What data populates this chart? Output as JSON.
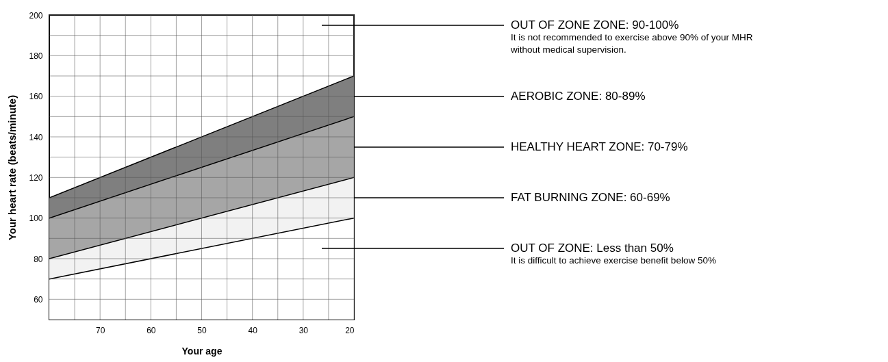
{
  "chart_data": {
    "type": "area",
    "xlabel": "Your age",
    "ylabel": "Your heart rate (beats/minute)",
    "x": [
      80,
      20
    ],
    "series": [
      {
        "color": "#7f7f7f",
        "values": [
          110,
          170
        ]
      },
      {
        "color": "#a6a6a6",
        "values": [
          100,
          150
        ]
      },
      {
        "color": "#f2f2f2",
        "values": [
          80,
          120
        ]
      },
      {
        "color": "#ffffff",
        "values": [
          70,
          100
        ]
      }
    ],
    "xlim": [
      80,
      20
    ],
    "xticks": [
      {
        "value": 75,
        "label": null
      },
      70,
      {
        "value": 65,
        "label": null
      },
      60,
      {
        "value": 55,
        "label": null
      },
      50,
      {
        "value": 45,
        "label": null
      },
      40,
      {
        "value": 35,
        "label": null
      },
      30,
      {
        "value": 25,
        "label": null
      },
      20
    ],
    "ylim": [
      50,
      200
    ],
    "yticks": [
      60,
      {
        "value": 70,
        "label": null
      },
      80,
      {
        "value": 90,
        "label": null
      },
      100,
      {
        "value": 110,
        "label": null
      },
      120,
      {
        "value": 130,
        "label": null
      },
      140,
      {
        "value": 150,
        "label": null
      },
      160,
      {
        "value": 170,
        "label": null
      },
      180,
      {
        "value": 190,
        "label": null
      },
      200
    ],
    "grid": true,
    "annotations": [
      "OUT OF ZONE ZONE: 90-100%",
      "It is not recommended to exercise above 90% of your MHR\nwithout medical supervision.",
      "AEROBIC ZONE: 80-89%",
      "HEALTHY HEART ZONE: 70-79%",
      "FAT BURNING ZONE: 60-69%",
      "OUT OF ZONE: Less than 50%",
      "It is difficult to achieve exercise benefit below 50%"
    ]
  }
}
